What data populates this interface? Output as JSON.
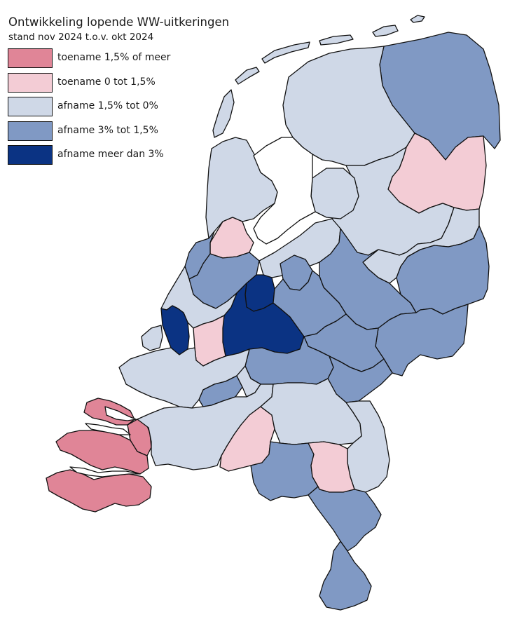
{
  "map": {
    "title": "Ontwikkeling lopende WW-uitkeringen",
    "subtitle": "stand nov 2024 t.o.v. okt 2024"
  },
  "legend": [
    {
      "label": "toename 1,5% of meer",
      "class": "t15",
      "color": "#e08597"
    },
    {
      "label": "toename 0 tot 1,5%",
      "class": "t0",
      "color": "#f3ccd5"
    },
    {
      "label": "afname 1,5% tot 0%",
      "class": "a0",
      "color": "#cfd8e7"
    },
    {
      "label": "afname 3% tot 1,5%",
      "class": "a15",
      "color": "#8099c4"
    },
    {
      "label": "afname meer dan 3%",
      "class": "a3",
      "color": "#0b3383"
    }
  ],
  "regions": [
    {
      "name": "region-groningen",
      "class": "a15"
    },
    {
      "name": "region-friesland",
      "class": "a0"
    },
    {
      "name": "region-drenthe",
      "class": "t0"
    },
    {
      "name": "region-noord-holland-noord",
      "class": "a0"
    },
    {
      "name": "region-zaanstreek-waterland",
      "class": "t0"
    },
    {
      "name": "region-zuid-kennemerland-ijmond",
      "class": "a15"
    },
    {
      "name": "region-groot-amsterdam",
      "class": "a15"
    },
    {
      "name": "region-gooi-vechtstreek",
      "class": "a3"
    },
    {
      "name": "region-flevoland",
      "class": "a0"
    },
    {
      "name": "region-zwolle",
      "class": "a0"
    },
    {
      "name": "region-stedendriehoek",
      "class": "a15"
    },
    {
      "name": "region-twente",
      "class": "a15"
    },
    {
      "name": "region-achterhoek",
      "class": "a15"
    },
    {
      "name": "region-amersfoort",
      "class": "a15"
    },
    {
      "name": "region-midden-utrecht",
      "class": "a3"
    },
    {
      "name": "region-holland-rijnland",
      "class": "a0"
    },
    {
      "name": "region-haaglanden",
      "class": "a3"
    },
    {
      "name": "region-midden-holland",
      "class": "t0"
    },
    {
      "name": "region-rijnmond",
      "class": "a0"
    },
    {
      "name": "region-drechtsteden",
      "class": "a15"
    },
    {
      "name": "region-gorinchem",
      "class": "a0"
    },
    {
      "name": "region-food-valley",
      "class": "a15"
    },
    {
      "name": "region-midden-gelderland",
      "class": "a15"
    },
    {
      "name": "region-rivierenland",
      "class": "a15"
    },
    {
      "name": "region-rijk-van-nijmegen",
      "class": "a15"
    },
    {
      "name": "region-zeeland",
      "class": "t15"
    },
    {
      "name": "region-west-brabant",
      "class": "a0"
    },
    {
      "name": "region-midden-brabant",
      "class": "t0"
    },
    {
      "name": "region-noordoost-brabant",
      "class": "a0"
    },
    {
      "name": "region-noord-limburg",
      "class": "a0"
    },
    {
      "name": "region-zuidoost-brabant",
      "class": "a15"
    },
    {
      "name": "region-helmond-de-peel",
      "class": "t0"
    },
    {
      "name": "region-midden-limburg",
      "class": "a15"
    },
    {
      "name": "region-zuid-limburg",
      "class": "a15"
    },
    {
      "name": "region-noord-drenthe-extra",
      "class": "a0"
    },
    {
      "name": "region-ijmond-west",
      "class": "a0"
    }
  ]
}
